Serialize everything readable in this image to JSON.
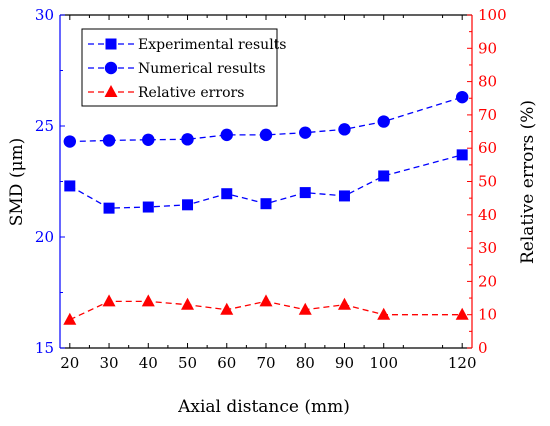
{
  "chart_data": {
    "type": "line",
    "x": [
      20,
      30,
      40,
      50,
      60,
      70,
      80,
      90,
      100,
      120
    ],
    "xlabel": "Axial distance (mm)",
    "xlim": [
      17.5,
      122.5
    ],
    "xticks": [
      20,
      30,
      40,
      50,
      60,
      70,
      80,
      90,
      100,
      120
    ],
    "ylabel_left": "SMD (μm)",
    "ylim_left": [
      15,
      30
    ],
    "yticks_left": [
      15,
      20,
      25,
      30
    ],
    "ylabel_right": "Relative errors (%)",
    "ylim_right": [
      0,
      100
    ],
    "yticks_right": [
      0,
      10,
      20,
      30,
      40,
      50,
      60,
      70,
      80,
      90,
      100
    ],
    "grid": false,
    "legend_position": "top-left",
    "series": [
      {
        "name": "Experimental results",
        "axis": "left",
        "marker": "square",
        "color": "#0000FF",
        "values": [
          22.3,
          21.3,
          21.35,
          21.45,
          21.95,
          21.5,
          22.0,
          21.85,
          22.75,
          23.7
        ]
      },
      {
        "name": "Numerical results",
        "axis": "left",
        "marker": "circle",
        "color": "#0000FF",
        "values": [
          24.3,
          24.35,
          24.38,
          24.4,
          24.6,
          24.6,
          24.7,
          24.85,
          25.2,
          26.3
        ]
      },
      {
        "name": "Relative errors",
        "axis": "right",
        "marker": "triangle",
        "color": "#FF0000",
        "values": [
          8.5,
          14.0,
          14.0,
          13.0,
          11.5,
          14.0,
          11.5,
          13.0,
          10.0,
          10.0
        ]
      }
    ]
  }
}
